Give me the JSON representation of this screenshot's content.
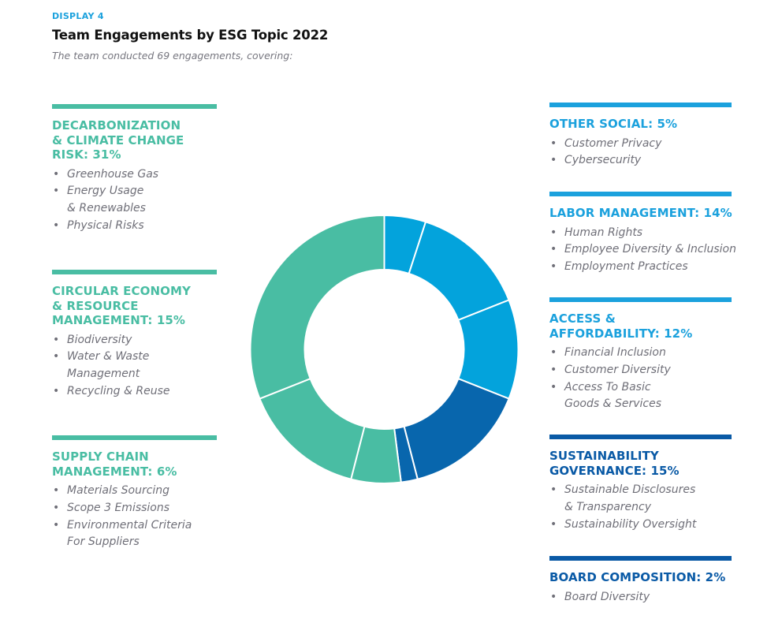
{
  "header": {
    "eyebrow": "DISPLAY 4",
    "title": "Team Engagements by ESG Topic 2022",
    "subtitle": "The team conducted 69 engagements, covering:"
  },
  "colors": {
    "teal": "#49bda3",
    "light_blue": "#03a3dc",
    "dark_blue": "#0866ad",
    "gap": "#ffffff"
  },
  "left_blocks": [
    {
      "heading": "DECARBONIZATION & CLIMATE CHANGE RISK: 31%",
      "color": "#49bda3",
      "items": [
        "Greenhouse Gas",
        "Energy Usage & Renewables",
        "Physical Risks"
      ]
    },
    {
      "heading": "CIRCULAR ECONOMY & RESOURCE MANAGEMENT: 15%",
      "color": "#49bda3",
      "items": [
        "Biodiversity",
        "Water & Waste Management",
        "Recycling & Reuse"
      ]
    },
    {
      "heading": "SUPPLY CHAIN MANAGEMENT: 6%",
      "color": "#49bda3",
      "items": [
        "Materials Sourcing",
        "Scope 3 Emissions",
        "Environmental Criteria For Suppliers"
      ]
    }
  ],
  "right_blocks": [
    {
      "heading": "OTHER SOCIAL: 5%",
      "color": "#1ba1dd",
      "items": [
        "Customer Privacy",
        "Cybersecurity"
      ]
    },
    {
      "heading": "LABOR MANAGEMENT: 14%",
      "color": "#1ba1dd",
      "items": [
        "Human Rights",
        "Employee Diversity & Inclusion",
        "Employment Practices"
      ]
    },
    {
      "heading": "ACCESS & AFFORDABILITY: 12%",
      "color": "#1ba1dd",
      "items": [
        "Financial Inclusion",
        "Customer Diversity",
        "Access To Basic Goods & Services"
      ]
    },
    {
      "heading": "SUSTAINABILITY GOVERNANCE: 15%",
      "color": "#0a5aa6",
      "items": [
        "Sustainable Disclosures & Transparency",
        "Sustainability Oversight"
      ]
    },
    {
      "heading": "BOARD COMPOSITION: 2%",
      "color": "#0a5aa6",
      "items": [
        "Board Diversity"
      ]
    }
  ],
  "chart_data": {
    "type": "pie",
    "variant": "donut",
    "title": "Team Engagements by ESG Topic 2022",
    "subtitle": "The team conducted 69 engagements, covering:",
    "start": "top",
    "direction": "clockwise",
    "unit": "%",
    "total_engagements": 69,
    "slices": [
      {
        "label": "Other Social",
        "value": 5,
        "color": "#03a3dc"
      },
      {
        "label": "Labor Management",
        "value": 14,
        "color": "#03a3dc"
      },
      {
        "label": "Access & Affordability",
        "value": 12,
        "color": "#03a3dc"
      },
      {
        "label": "Sustainability Governance",
        "value": 15,
        "color": "#0866ad"
      },
      {
        "label": "Board Composition",
        "value": 2,
        "color": "#0866ad"
      },
      {
        "label": "Supply Chain Management",
        "value": 6,
        "color": "#49bda3"
      },
      {
        "label": "Circular Economy & Resource Management",
        "value": 15,
        "color": "#49bda3"
      },
      {
        "label": "Decarbonization & Climate Change Risk",
        "value": 31,
        "color": "#49bda3"
      }
    ]
  }
}
